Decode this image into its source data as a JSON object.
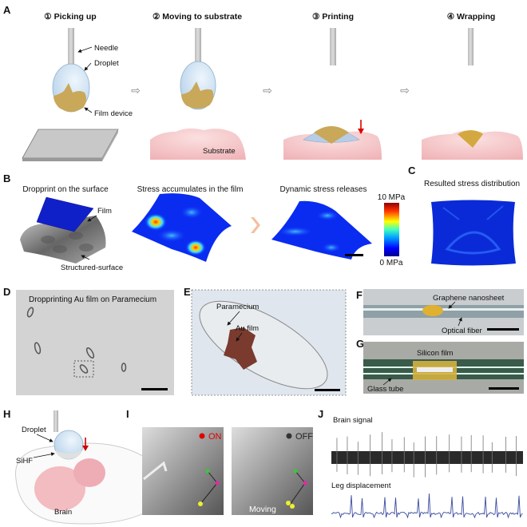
{
  "panel_labels": [
    "A",
    "B",
    "C",
    "D",
    "E",
    "F",
    "G",
    "H",
    "I",
    "J"
  ],
  "A": {
    "steps": [
      "① Picking up",
      "② Moving to substrate",
      "③ Printing",
      "④ Wrapping"
    ],
    "needle_label": "Needle",
    "droplet_label": "Droplet",
    "film_label": "Film device",
    "substrate_label": "Substrate",
    "arrow_icon": "hollow-right-arrow"
  },
  "B": {
    "titles": [
      "Dropprint on the surface",
      "Stress accumulates in the film",
      "Dynamic stress releases"
    ],
    "film_label": "Film",
    "surface_label": "Structured-surface",
    "colorbar_max": "10 MPa",
    "colorbar_min": "0 MPa"
  },
  "C": {
    "title": "Resulted stress distribution"
  },
  "D": {
    "title": "Dropprinting Au film on Paramecium"
  },
  "E": {
    "paramecium_label": "Paramecium",
    "film_label": "Au film"
  },
  "F": {
    "graphene_label": "Graphene nanosheet",
    "fiber_label": "Optical fiber"
  },
  "G": {
    "film_label": "Silicon film",
    "tube_label": "Glass tube"
  },
  "H": {
    "droplet_label": "Droplet",
    "sihf_label": "SiHF",
    "brain_label": "Brain"
  },
  "I": {
    "on_label": "ON",
    "off_label": "OFF",
    "moving_label": "Moving",
    "on_color": "#e00000",
    "off_color": "#333333"
  },
  "J": {
    "brain_label": "Brain signal",
    "leg_label": "Leg displacement",
    "leg_color": "#3a4aa0"
  }
}
